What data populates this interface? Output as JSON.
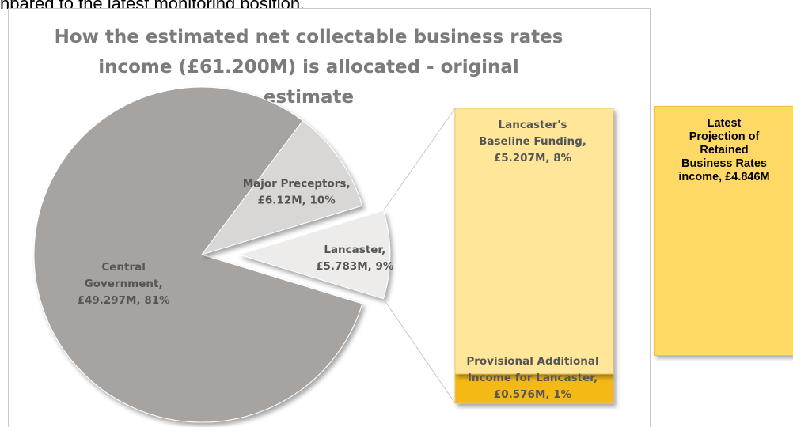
{
  "intro_text": "npared to the latest monitoring position.",
  "chart_data": [
    {
      "type": "pie",
      "title": "How the estimated net collectable business rates income  (£61.200M) is allocated - original estimate",
      "title_lines": [
        "How the estimated net collectable business rates",
        "income  (£61.200M) is allocated - original",
        "estimate"
      ],
      "slices": [
        {
          "name": "Central Government",
          "value": 49.297,
          "percent": 81,
          "label_lines": [
            "Central",
            "Government,",
            "£49.297M, 81%"
          ],
          "color": "#a6a3a1",
          "exploded": false
        },
        {
          "name": "Major Preceptors",
          "value": 6.12,
          "percent": 10,
          "label_lines": [
            "Major Preceptors,",
            "£6.12M, 10%"
          ],
          "color": "#d9d7d5",
          "exploded": false
        },
        {
          "name": "Lancaster",
          "value": 5.783,
          "percent": 9,
          "label_lines": [
            "Lancaster,",
            "£5.783M, 9%"
          ],
          "color": "#edecea",
          "exploded": true
        }
      ]
    },
    {
      "type": "bar",
      "stacked": true,
      "series": [
        {
          "name": "Lancaster's Baseline Funding",
          "value": 5.207,
          "percent": 8,
          "label_lines": [
            "Lancaster's",
            "Baseline Funding,",
            "£5.207M, 8%"
          ],
          "color": "#ffe699"
        },
        {
          "name": "Provisional Additional Income for Lancaster",
          "value": 0.576,
          "percent": 1,
          "label_lines": [
            "Provisional Additional",
            "Income for Lancaster,",
            "£0.576M, 1%"
          ],
          "color": "#f5b914"
        }
      ]
    }
  ],
  "callout": {
    "lines": [
      "Latest",
      "Projection of",
      "Retained",
      "Business Rates",
      "income,  £4.846M"
    ],
    "color": "#ffd966"
  }
}
